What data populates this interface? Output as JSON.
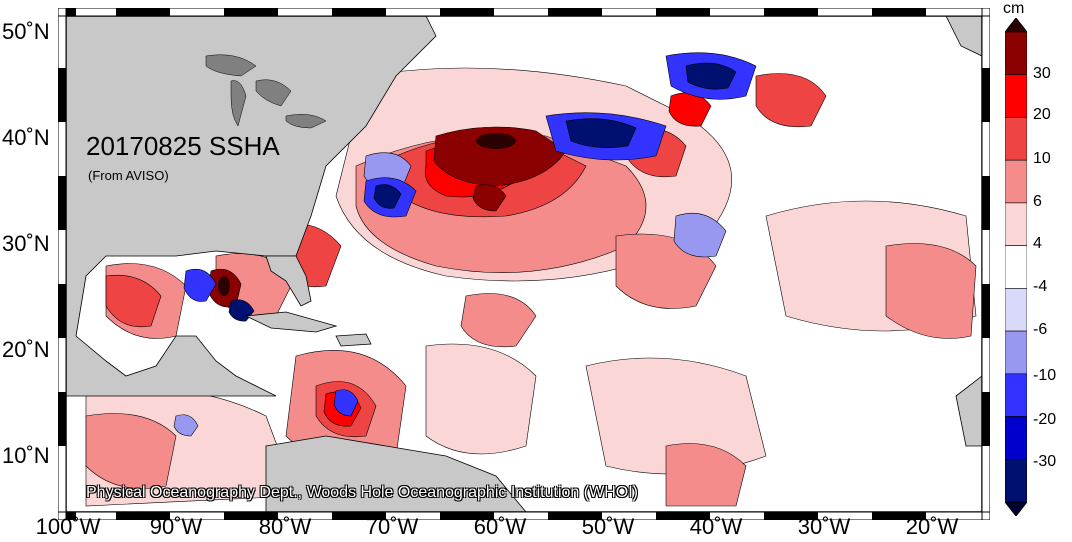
{
  "map": {
    "title": "20170825 SSHA",
    "subtitle": "(From AVISO)",
    "credit": "Physical Oceanography Dept., Woods Hole Oceanographic Institution (WHOI)",
    "lon_labels": [
      "100˚W",
      "90˚W",
      "80˚W",
      "70˚W",
      "60˚W",
      "50˚W",
      "40˚W",
      "30˚W",
      "20˚W"
    ],
    "lat_labels": [
      "50˚N",
      "40˚N",
      "30˚N",
      "20˚N",
      "10˚N"
    ],
    "region": {
      "lon_range": [
        -100,
        -15
      ],
      "lat_range": [
        5,
        51
      ]
    }
  },
  "colorbar": {
    "unit": "cm",
    "tick_labels": [
      "30",
      "20",
      "10",
      "6",
      "4",
      "-4",
      "-6",
      "-10",
      "-20",
      "-30"
    ],
    "colors": [
      "#2a0000",
      "#8b0000",
      "#ff0000",
      "#ee4444",
      "#f48c8c",
      "#fbd6d6",
      "#ffffff",
      "#d8d8f8",
      "#9898f0",
      "#3333ff",
      "#0000cc",
      "#001070",
      "#000033"
    ]
  },
  "colors": {
    "land": "#c8c8c8",
    "ocean_neutral": "#ffffff",
    "frame": "#000000"
  }
}
